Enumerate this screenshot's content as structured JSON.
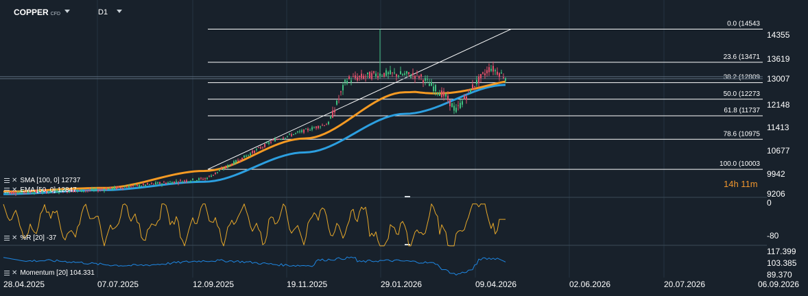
{
  "header": {
    "symbol": "COPPER",
    "symbol_suffix": "CFD",
    "timeframe": "D1"
  },
  "candle_countdown": "14h 11m",
  "indicators": {
    "sma_label": "SMA [100, 0] 12737",
    "ema_label": "EMA [50, 0] 12847",
    "williams_label": "%R [20] -37",
    "momentum_label": "Momentum [20] 104.331"
  },
  "price_axis": {
    "ticks": [
      "14355",
      "13619",
      "13007",
      "12148",
      "11413",
      "10677",
      "9942",
      "9206"
    ],
    "current_price": "13007"
  },
  "williams_axis": {
    "ticks": [
      "0",
      "-80"
    ]
  },
  "momentum_axis": {
    "ticks": [
      "117.399",
      "103.385",
      "89.370"
    ]
  },
  "date_axis": {
    "ticks": [
      "28.04.2025",
      "07.07.2025",
      "12.09.2025",
      "19.11.2025",
      "29.01.2026",
      "09.04.2026",
      "02.06.2026",
      "20.07.2026",
      "06.09.2026"
    ]
  },
  "fib_labels": [
    "0.0 (14543",
    "23.6 (13471",
    "38.2 (12809",
    "50.0 (12273",
    "61.8 (11737",
    "78.6 (10975",
    "100.0 (10003"
  ],
  "colors": {
    "background": "#18212b",
    "sma": "#2c9fe0",
    "ema": "#f59a23",
    "williams": "#e8a92a",
    "momentum": "#1e88e5",
    "candle_up": "#3fbf7f",
    "candle_down": "#e0506a",
    "fib_line": "#ffffff"
  },
  "chart_data": {
    "type": "line",
    "title": "COPPER CFD D1",
    "x_range": [
      "28.04.2025",
      "06.09.2026"
    ],
    "ylim": [
      9206,
      14543
    ],
    "fibonacci": [
      {
        "level": 0.0,
        "price": 14543
      },
      {
        "level": 23.6,
        "price": 13471
      },
      {
        "level": 38.2,
        "price": 12809
      },
      {
        "level": 50.0,
        "price": 12273
      },
      {
        "level": 61.8,
        "price": 11737
      },
      {
        "level": 78.6,
        "price": 10975
      },
      {
        "level": 100.0,
        "price": 10003
      }
    ],
    "series": [
      {
        "name": "SMA [100, 0]",
        "x": [
          "28.04.2025",
          "07.07.2025",
          "12.09.2025",
          "19.11.2025",
          "29.01.2026",
          "09.04.2026"
        ],
        "values": [
          9200,
          9330,
          9600,
          10550,
          11800,
          12737
        ]
      },
      {
        "name": "EMA [50, 0]",
        "x": [
          "28.04.2025",
          "07.07.2025",
          "12.09.2025",
          "19.11.2025",
          "29.01.2026",
          "09.04.2026"
        ],
        "values": [
          9280,
          9400,
          9950,
          11000,
          12500,
          12847
        ]
      },
      {
        "name": "%R [20]",
        "last": -37,
        "ylim": [
          -100,
          0
        ]
      },
      {
        "name": "Momentum [20]",
        "last": 104.331,
        "ylim": [
          89.37,
          117.399
        ]
      }
    ]
  }
}
